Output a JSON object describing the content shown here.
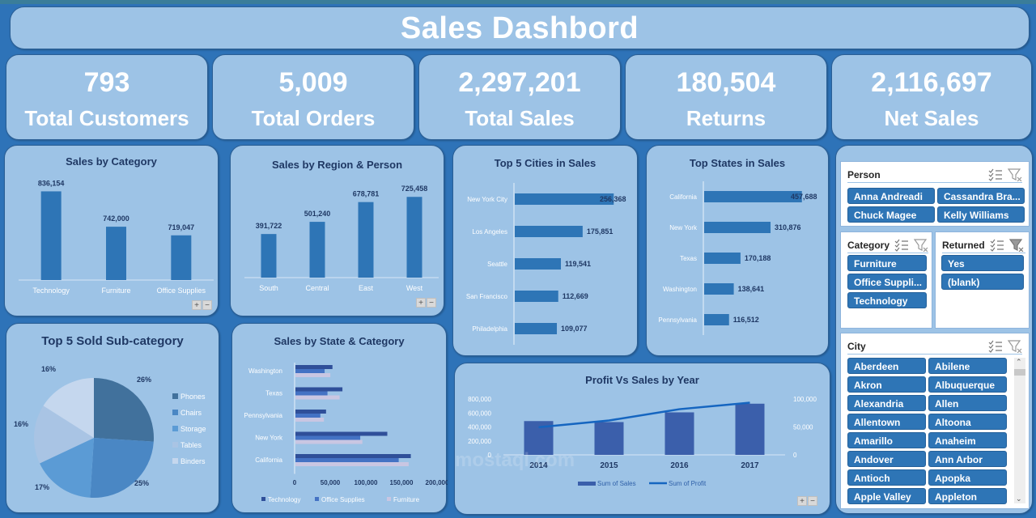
{
  "header": {
    "title": "Sales Dashbord"
  },
  "kpis": [
    {
      "value": "793",
      "label": "Total Customers"
    },
    {
      "value": "5,009",
      "label": "Total Orders"
    },
    {
      "value": "2,297,201",
      "label": "Total Sales"
    },
    {
      "value": "180,504",
      "label": "Returns"
    },
    {
      "value": "2,116,697",
      "label": "Net Sales"
    }
  ],
  "colors": {
    "background": "#2e73b8",
    "card": "#9dc3e6",
    "bar": "#2e75b6",
    "title_text": "#1f3864",
    "slicer_item": "#2e75b6"
  },
  "watermark": "mostaql.com",
  "chart_data": [
    {
      "id": "sales_by_category",
      "type": "bar",
      "title": "Sales by Category",
      "categories": [
        "Technology",
        "Furniture",
        "Office Supplies"
      ],
      "values": [
        836154,
        742000,
        719047
      ],
      "labels": [
        "836,154",
        "742,000",
        "719,047"
      ],
      "ylim": [
        600000,
        850000
      ]
    },
    {
      "id": "sales_by_region",
      "type": "bar",
      "title": "Sales by Region & Person",
      "categories": [
        "South",
        "Central",
        "East",
        "West"
      ],
      "values": [
        391722,
        501240,
        678781,
        725458
      ],
      "labels": [
        "391,722",
        "501,240",
        "678,781",
        "725,458"
      ],
      "ylim": [
        0,
        800000
      ]
    },
    {
      "id": "top_cities",
      "type": "bar",
      "orientation": "horizontal",
      "title": "Top 5 Cities in Sales",
      "categories": [
        "New York City",
        "Los Angeles",
        "Seattle",
        "San Francisco",
        "Philadelphia"
      ],
      "values": [
        256368,
        175851,
        119541,
        112669,
        109077
      ],
      "labels": [
        "256,368",
        "175,851",
        "119,541",
        "112,669",
        "109,077"
      ],
      "xlim": [
        0,
        260000
      ]
    },
    {
      "id": "top_states",
      "type": "bar",
      "orientation": "horizontal",
      "title": "Top  States in Sales",
      "categories": [
        "California",
        "New York",
        "Texas",
        "Washington",
        "Pennsylvania"
      ],
      "values": [
        457688,
        310876,
        170188,
        138641,
        116512
      ],
      "labels": [
        "457,688",
        "310,876",
        "170,188",
        "138,641",
        "116,512"
      ],
      "xlim": [
        0,
        470000
      ]
    },
    {
      "id": "top_subcategory",
      "type": "pie",
      "title": "Top 5 Sold Sub-category",
      "categories": [
        "Phones",
        "Chairs",
        "Storage",
        "Tables",
        "Binders"
      ],
      "values": [
        26,
        25,
        17,
        16,
        16
      ],
      "labels": [
        "26%",
        "25%",
        "17%",
        "16%",
        "16%"
      ],
      "colors": [
        "#41719c",
        "#4a87c4",
        "#5b9bd5",
        "#a9c4e4",
        "#c5d7ee"
      ],
      "legend": "right"
    },
    {
      "id": "sales_by_state_category",
      "type": "bar",
      "orientation": "horizontal",
      "title": "Sales by State & Category",
      "categories": [
        "Washington",
        "Texas",
        "Pennsylvania",
        "New York",
        "California"
      ],
      "series": [
        {
          "name": "Technology",
          "color": "#2f4f99",
          "values": [
            52000,
            66000,
            43000,
            129000,
            162000
          ]
        },
        {
          "name": "Office Supplies",
          "color": "#4472c4",
          "values": [
            41000,
            45000,
            35000,
            91000,
            145000
          ]
        },
        {
          "name": "Furniture",
          "color": "#c9c6e2",
          "values": [
            49000,
            62000,
            40000,
            94000,
            159000
          ]
        }
      ],
      "xticks": [
        "0",
        "50,000",
        "100,000",
        "150,000",
        "200,000"
      ],
      "xlim": [
        0,
        200000
      ],
      "legend": "bottom"
    },
    {
      "id": "profit_vs_sales",
      "type": "bar",
      "title": "Profit Vs Sales by Year",
      "categories": [
        "2014",
        "2015",
        "2016",
        "2017"
      ],
      "series": [
        {
          "name": "Sum of Sales",
          "type": "bar",
          "axis": "left",
          "values": [
            484000,
            470000,
            609000,
            733000
          ]
        },
        {
          "name": "Sum of Profit",
          "type": "line",
          "axis": "right",
          "values": [
            49500,
            61600,
            81800,
            93400
          ]
        }
      ],
      "yticks_left": [
        "0",
        "200,000",
        "400,000",
        "600,000",
        "800,000"
      ],
      "yticks_right": [
        "0",
        "50,000",
        "100,000"
      ],
      "ylim_left": [
        0,
        800000
      ],
      "ylim_right": [
        0,
        100000
      ],
      "legend": "bottom"
    }
  ],
  "slicers": {
    "person": {
      "title": "Person",
      "items": [
        "Anna Andreadi",
        "Cassandra Bra...",
        "Chuck Magee",
        "Kelly Williams"
      ]
    },
    "category": {
      "title": "Category",
      "items": [
        "Furniture",
        "Office Suppli...",
        "Technology"
      ]
    },
    "returned": {
      "title": "Returned",
      "items": [
        "Yes",
        "(blank)"
      ]
    },
    "city": {
      "title": "City",
      "items": [
        "Aberdeen",
        "Abilene",
        "Akron",
        "Albuquerque",
        "Alexandria",
        "Allen",
        "Allentown",
        "Altoona",
        "Amarillo",
        "Anaheim",
        "Andover",
        "Ann Arbor",
        "Antioch",
        "Apopka",
        "Apple Valley",
        "Appleton"
      ]
    }
  }
}
